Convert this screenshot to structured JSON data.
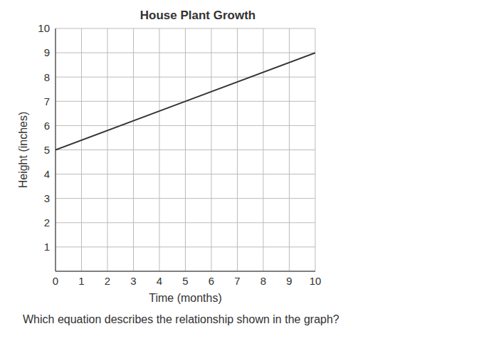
{
  "chart_data": {
    "type": "line",
    "title": "House Plant Growth",
    "x_label": "Time (months)",
    "y_label": "Height (inches)",
    "x": [
      0,
      10
    ],
    "values": [
      5,
      9
    ],
    "color": "#333333",
    "xlim": [
      0,
      10
    ],
    "xticks": [
      0,
      1,
      2,
      3,
      4,
      5,
      6,
      7,
      8,
      9,
      10
    ],
    "ylim": [
      0,
      10
    ],
    "yticks": [
      1,
      2,
      3,
      4,
      5,
      6,
      7,
      8,
      9,
      10
    ],
    "grid": true,
    "annotations": [
      "Which equation describes the relationship shown in the graph?"
    ]
  }
}
